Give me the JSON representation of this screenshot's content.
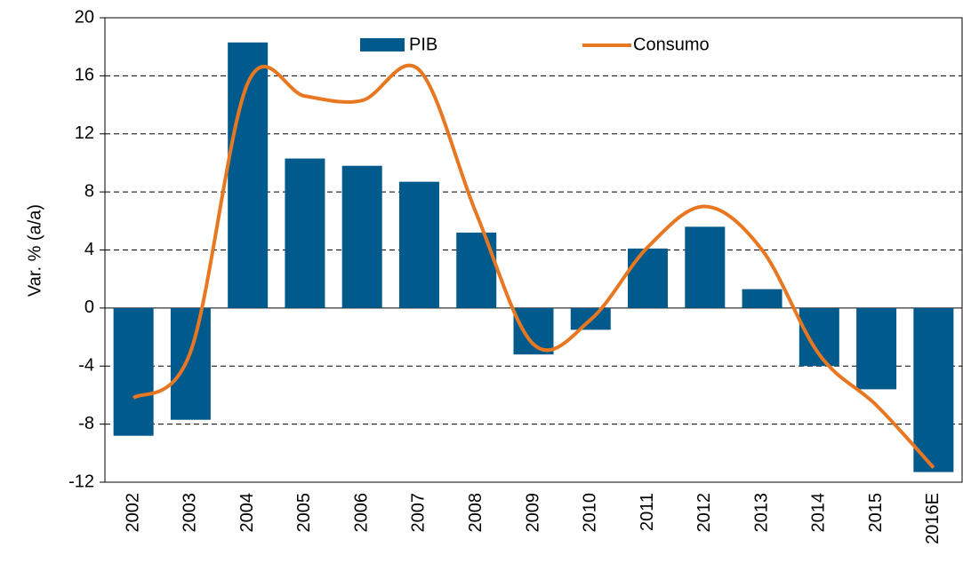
{
  "chart_data": {
    "type": "bar_line",
    "y_label": "Var. % (a/a)",
    "categories": [
      "2002",
      "2003",
      "2004",
      "2005",
      "2006",
      "2007",
      "2008",
      "2009",
      "2010",
      "2011",
      "2012",
      "2013",
      "2014",
      "2015",
      "2016E"
    ],
    "series": [
      {
        "name": "PIB",
        "type": "bar",
        "color": "#005a8c",
        "values": [
          -8.8,
          -7.7,
          18.3,
          10.3,
          9.8,
          8.7,
          5.2,
          -3.2,
          -1.5,
          4.1,
          5.6,
          1.3,
          -4.0,
          -5.6,
          -11.3
        ]
      },
      {
        "name": "Consumo",
        "type": "line",
        "color": "#e87722",
        "values": [
          -6.2,
          -3.0,
          15.5,
          14.6,
          14.3,
          16.4,
          6.5,
          -2.5,
          -0.8,
          4.2,
          7.0,
          4.0,
          -3.2,
          -6.7,
          -11.0
        ]
      }
    ],
    "ylim": [
      -12,
      20
    ],
    "yticks": [
      -12,
      -8,
      -4,
      0,
      4,
      8,
      12,
      16,
      20
    ],
    "grid": true
  }
}
